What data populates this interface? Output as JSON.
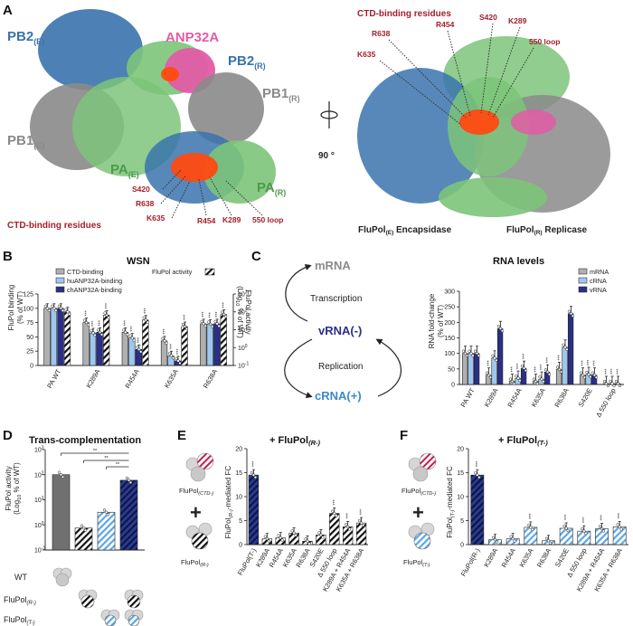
{
  "colors": {
    "pb2": "#3a73ad",
    "pb1": "#8a8a8a",
    "pa": "#7cc47a",
    "anp": "#e25ca6",
    "ctd_red": "#b3202a",
    "ctd_orange": "#ff4a10",
    "dark_blue": "#2b2f86",
    "light_blue": "#9ec8ee",
    "grey_bar": "#b0b0b0",
    "dark_grey": "#707070"
  },
  "panelA": {
    "label": "A",
    "pb2e": "PB2",
    "pb2e_sub": "(E)",
    "anp": "ANP32A",
    "pb2r": "PB2",
    "pb2r_sub": "(R)",
    "pb1r": "PB1",
    "pb1r_sub": "(R)",
    "pb1e": "PB1",
    "pb1e_sub": "(E)",
    "pae": "PA",
    "pae_sub": "(E)",
    "par": "PA",
    "par_sub": "(R)",
    "residues_left": [
      "S420",
      "R638",
      "K635",
      "R454",
      "K289",
      "550 loop"
    ],
    "ctd_left": "CTD-binding residues",
    "ctd_right": "CTD-binding residues",
    "residues_right": [
      "R638",
      "R454",
      "S420",
      "K289",
      "550 loop",
      "K635"
    ],
    "rotation": "90 °",
    "fluE": "FluPol",
    "fluE_sub": "(E)",
    "fluE_rest": " Encapsidase",
    "fluR": "FluPol",
    "fluR_sub": "(R)",
    "fluR_rest": " Replicase"
  },
  "panelB": {
    "label": "B",
    "title": "WSN",
    "ylabel_left": "FluPol binding",
    "ylabel_left2": "(% of WT)",
    "ylabel_right1": "FluPol activity",
    "ylabel_right2": "(Log",
    "ylabel_right3": "% of WT)",
    "ylabel_right_sub": "10",
    "legend": [
      "CTD-binding",
      "huANP32A-binding",
      "chANP32A-binding"
    ],
    "legend_activity": "FluPol activity",
    "yticks_left": [
      "0",
      "25",
      "50",
      "75",
      "100",
      "125"
    ],
    "yticks_right": [
      "10",
      "10",
      "10",
      "10",
      "10"
    ],
    "yticks_right_exp": [
      "-1",
      "0",
      "1",
      "2",
      "3"
    ],
    "sig": "***"
  },
  "panelC": {
    "label": "C",
    "mrna": "mRNA",
    "transcription": "Transcription",
    "vrna": "vRNA(-)",
    "replication": "Replication",
    "crna": "cRNA(+)",
    "title": "RNA levels",
    "ylabel1": "RNA fold-change",
    "ylabel2": "(% of WT)",
    "legend": [
      "mRNA",
      "cRNA",
      "vRNA"
    ],
    "yticks": [
      "0",
      "50",
      "100",
      "150",
      "200",
      "250",
      "300"
    ],
    "sig": "***"
  },
  "panelD": {
    "label": "D",
    "title": "Trans-complementation",
    "ylabel1": "FluPol activity",
    "ylabel2": "(Log",
    "ylabel3": "% of WT)",
    "ylabel_sub": "10",
    "yticks": [
      "10",
      "10",
      "10",
      "10",
      "10"
    ],
    "yticks_exp": [
      "-1",
      "0",
      "1",
      "2",
      "3"
    ],
    "sig": "**",
    "rows": [
      "WT",
      "FluPol",
      "FluPol"
    ],
    "row_subs": [
      "",
      "(R-)",
      "(T-)"
    ]
  },
  "panelE": {
    "label": "E",
    "title": "+ FluPol",
    "title_sub": "(R-)",
    "top_label": "FluPol",
    "top_sub": "(CTD-)",
    "plus": "+",
    "bottom_label": "FluPol",
    "bottom_sub": "(R-)",
    "ylabel_a": "FluPol",
    "ylabel_sub": "(R-)",
    "ylabel_b": "-mediated FC",
    "yticks": [
      "0",
      "5",
      "10",
      "15",
      "20"
    ],
    "sig": "***"
  },
  "panelF": {
    "label": "F",
    "title": "+ FluPol",
    "title_sub": "(T-)",
    "top_label": "FluPol",
    "top_sub": "(CTD-)",
    "plus": "+",
    "bottom_label": "FluPol",
    "bottom_sub": "(T-)",
    "ylabel_a": "FluPol",
    "ylabel_sub": "(T-)",
    "ylabel_b": "-mediated FC",
    "yticks": [
      "0",
      "5",
      "10",
      "15",
      "20"
    ],
    "sig": "***"
  },
  "chart_data": [
    {
      "type": "bar",
      "panel": "B",
      "title": "WSN",
      "categories": [
        "PA WT",
        "K289A",
        "R454A",
        "K635A",
        "R638A"
      ],
      "series": [
        {
          "name": "CTD-binding",
          "values": [
            100,
            75,
            58,
            43,
            73
          ]
        },
        {
          "name": "huANP32A-binding",
          "values": [
            100,
            57,
            48,
            17,
            72
          ]
        },
        {
          "name": "chANP32A-binding",
          "values": [
            100,
            58,
            28,
            8,
            73
          ]
        },
        {
          "name": "FluPol activity",
          "values": [
            100,
            65,
            35,
            15,
            72
          ]
        }
      ],
      "ylim": [
        0,
        125
      ],
      "ylim_right_log10": [
        -1,
        3
      ]
    },
    {
      "type": "bar",
      "panel": "C",
      "title": "RNA levels",
      "categories": [
        "PA WT",
        "K289A",
        "R454A",
        "K635A",
        "R638A",
        "S420E",
        "Δ 550 loop"
      ],
      "series": [
        {
          "name": "mRNA",
          "values": [
            100,
            30,
            10,
            10,
            48,
            30,
            3
          ]
        },
        {
          "name": "cRNA",
          "values": [
            100,
            85,
            20,
            17,
            120,
            32,
            3
          ]
        },
        {
          "name": "vRNA",
          "values": [
            100,
            180,
            52,
            40,
            228,
            30,
            3
          ]
        }
      ],
      "ylim": [
        0,
        300
      ]
    },
    {
      "type": "bar",
      "panel": "D",
      "title": "Trans-complementation",
      "categories": [
        "WT",
        "FluPol(R-)",
        "FluPol(T-)",
        "FluPol(R-) + FluPol(T-)"
      ],
      "values": [
        100,
        0.75,
        3.2,
        60
      ],
      "ylim_log10": [
        -1,
        3
      ]
    },
    {
      "type": "bar",
      "panel": "E",
      "title": "+ FluPol(R-)",
      "categories": [
        "FluPol(T-)",
        "K289A",
        "R454A",
        "K635A",
        "R638A",
        "S420E",
        "Δ 550 loop",
        "K289A + R454A",
        "K635A + R638A"
      ],
      "values": [
        14.5,
        1.2,
        1.4,
        2.4,
        0.7,
        2.0,
        6.5,
        3.7,
        4.5
      ],
      "ylim": [
        0,
        20
      ]
    },
    {
      "type": "bar",
      "panel": "F",
      "title": "+ FluPol(T-)",
      "categories": [
        "FluPol(R-)",
        "K289A",
        "R454A",
        "K635A",
        "R638A",
        "S420E",
        "Δ 550 loop",
        "K289A + R454A",
        "K635A + R638A"
      ],
      "values": [
        14.5,
        1.0,
        1.2,
        3.6,
        0.8,
        3.4,
        2.8,
        3.3,
        3.7
      ],
      "ylim": [
        0,
        20
      ]
    }
  ]
}
